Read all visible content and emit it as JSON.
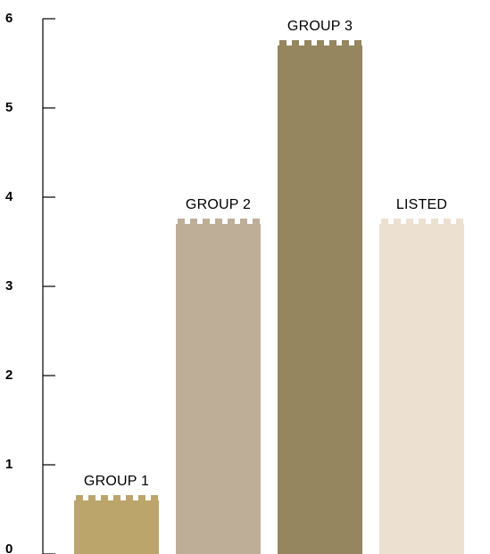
{
  "chart_data": {
    "type": "bar",
    "categories": [
      "GROUP 1",
      "GROUP 2",
      "GROUP 3",
      "LISTED"
    ],
    "values": [
      0.6,
      3.7,
      5.7,
      3.7
    ],
    "colors": [
      "#bca56b",
      "#bfae97",
      "#958660",
      "#ece0d1"
    ],
    "ylim": [
      0,
      6
    ],
    "yticks": [
      "0",
      "1",
      "2",
      "3",
      "4",
      "5",
      "6"
    ],
    "title": "",
    "xlabel": "",
    "ylabel": "",
    "grid": false,
    "legend": "none"
  }
}
